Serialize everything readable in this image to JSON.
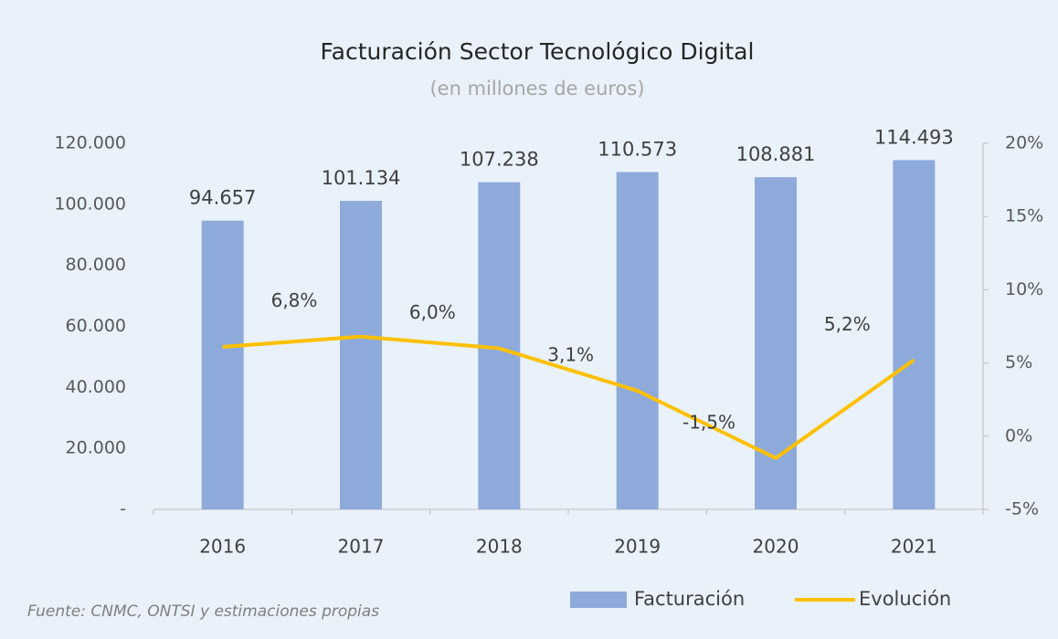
{
  "chart_data": {
    "type": "bar_line",
    "title": "Facturación Sector Tecnológico Digital",
    "subtitle": "(en millones de euros)",
    "source": "Fuente: CNMC, ONTSI y estimaciones propias",
    "categories": [
      "2016",
      "2017",
      "2018",
      "2019",
      "2020",
      "2021"
    ],
    "series": [
      {
        "name": "Facturación",
        "color": "#8eaadb",
        "type": "bar",
        "values": [
          94657,
          101134,
          107238,
          110573,
          108881,
          114493
        ],
        "value_labels": [
          "94.657",
          "101.134",
          "107.238",
          "110.573",
          "108.881",
          "114.493"
        ]
      },
      {
        "name": "Evolución",
        "color": "#ffc000",
        "type": "line",
        "axis": "y2",
        "values": [
          6.1,
          6.8,
          6.0,
          3.1,
          -1.5,
          5.2
        ],
        "value_labels": [
          null,
          "6,8%",
          "6,0%",
          "3,1%",
          "-1,5%",
          "5,2%"
        ]
      }
    ],
    "ylim": [
      0,
      120000
    ],
    "yticks": [
      {
        "value": 0,
        "label": "-"
      },
      {
        "value": 20000,
        "label": "20.000"
      },
      {
        "value": 40000,
        "label": "40.000"
      },
      {
        "value": 60000,
        "label": "60.000"
      },
      {
        "value": 80000,
        "label": "80.000"
      },
      {
        "value": 100000,
        "label": "100.000"
      },
      {
        "value": 120000,
        "label": "120.000"
      }
    ],
    "y2lim": [
      -5,
      20
    ],
    "y2ticks": [
      {
        "value": -5,
        "label": "-5%"
      },
      {
        "value": 0,
        "label": "0%"
      },
      {
        "value": 5,
        "label": "5%"
      },
      {
        "value": 10,
        "label": "10%"
      },
      {
        "value": 15,
        "label": "15%"
      },
      {
        "value": 20,
        "label": "20%"
      }
    ]
  }
}
